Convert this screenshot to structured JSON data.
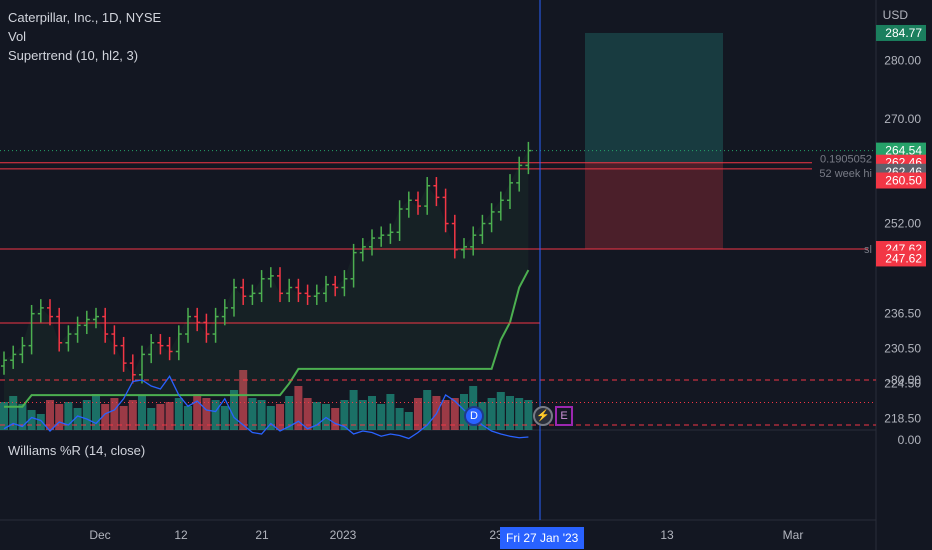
{
  "legend": {
    "title": "Caterpillar, Inc., 1D, NYSE",
    "vol": "Vol",
    "supertrend": "Supertrend (10, hl2, 3)",
    "williams": "Williams %R (14, close)"
  },
  "axis": {
    "currency": "USD",
    "price_ticks": [
      "280.00",
      "270.00",
      "252.00",
      "236.50",
      "230.50",
      "224.50",
      "218.50"
    ],
    "wr_ticks": [
      "0.00",
      "-80.00"
    ],
    "time_ticks": [
      "Dec",
      "12",
      "21",
      "2023",
      "23",
      "13",
      "Mar"
    ],
    "crosshair_date": "Fri 27 Jan '23"
  },
  "price_tags": [
    {
      "label": "284.77",
      "value": 284.77,
      "color": "#1b7f5e"
    },
    {
      "label": "264.54",
      "value": 264.54,
      "color": "#26a269"
    },
    {
      "label": "262.46",
      "value": 262.46,
      "color": "#f23645"
    },
    {
      "label": "262.46",
      "value": 260.9,
      "color": "#5d606b"
    },
    {
      "label": "260.50",
      "value": 259.4,
      "color": "#f23645"
    },
    {
      "label": "247.62",
      "value": 247.62,
      "color": "#f23645"
    },
    {
      "label": "247.62",
      "value": 246.0,
      "color": "#f23645"
    }
  ],
  "line_labels": {
    "fib": "0.1905052",
    "week_high": "52 week hi",
    "sl": "sl"
  },
  "badges": {
    "dividend": "D",
    "event": "E"
  },
  "colors": {
    "up": "#4caf50",
    "down": "#f23645",
    "supertrend": "#4caf50",
    "williams": "#2962ff",
    "vol_up": "#22ab94",
    "vol_down": "#f7525f"
  },
  "chart_data": {
    "type": "candlestick",
    "price_range": [
      216.5,
      287
    ],
    "hlines": [
      {
        "value": 262.46,
        "label": "0.1905052"
      },
      {
        "value": 261.4,
        "label": "52 week hi"
      },
      {
        "value": 247.62,
        "label": "sl"
      },
      {
        "value": 234.9,
        "label": ""
      }
    ],
    "position": {
      "entry": 262.46,
      "target": 284.77,
      "stop": 247.62
    },
    "close": [
      228.5,
      229.5,
      231.0,
      236.5,
      237.5,
      236.0,
      231.5,
      233.0,
      234.5,
      235.5,
      236.0,
      233.0,
      231.0,
      228.0,
      226.0,
      229.5,
      231.5,
      231.0,
      230.0,
      233.0,
      236.0,
      235.0,
      233.0,
      236.0,
      237.5,
      241.0,
      239.5,
      240.0,
      242.5,
      243.0,
      240.0,
      241.0,
      240.0,
      239.5,
      240.0,
      241.5,
      241.0,
      242.5,
      247.0,
      248.0,
      249.5,
      250.0,
      250.5,
      254.5,
      256.0,
      255.0,
      258.5,
      256.5,
      252.0,
      247.5,
      248.0,
      250.0,
      252.0,
      254.0,
      256.0,
      259.0,
      262.0,
      264.54
    ],
    "supertrend": [
      220.5,
      220.5,
      220.5,
      222.5,
      222.5,
      222.5,
      222.5,
      222.5,
      222.5,
      222.5,
      222.5,
      222.5,
      222.5,
      222.5,
      222.5,
      222.5,
      222.5,
      222.5,
      222.5,
      222.5,
      222.5,
      222.5,
      222.5,
      222.5,
      222.5,
      222.5,
      222.5,
      222.5,
      222.5,
      222.5,
      222.5,
      224.5,
      227.0,
      227.0,
      227.0,
      227.0,
      227.0,
      227.0,
      227.0,
      227.0,
      227.0,
      227.0,
      227.0,
      227.0,
      227.0,
      227.0,
      227.0,
      227.0,
      227.0,
      227.0,
      227.0,
      227.0,
      227.0,
      227.0,
      232.0,
      235.0,
      241.0,
      244.0
    ],
    "volume": [
      14,
      17,
      13,
      10,
      8,
      15,
      13,
      14,
      11,
      15,
      18,
      13,
      16,
      12,
      15,
      17,
      11,
      13,
      14,
      16,
      12,
      18,
      16,
      15,
      12,
      20,
      30,
      16,
      15,
      12,
      13,
      17,
      22,
      16,
      14,
      13,
      11,
      15,
      20,
      15,
      17,
      13,
      18,
      11,
      9,
      16,
      20,
      17,
      15,
      16,
      18,
      22,
      14,
      16,
      19,
      17,
      16,
      15
    ],
    "williams_r": [
      -15,
      -22,
      -18,
      -30,
      -26,
      -12,
      -24,
      -20,
      -32,
      -28,
      -22,
      -35,
      -40,
      -55,
      -78,
      -80,
      -72,
      -68,
      -85,
      -60,
      -45,
      -52,
      -40,
      -38,
      -55,
      -30,
      -20,
      -10,
      -8,
      -22,
      -12,
      -18,
      -25,
      -15,
      -20,
      -30,
      -22,
      -18,
      -8,
      -12,
      -10,
      -5,
      -8,
      -6,
      -2,
      -10,
      -20,
      -35,
      -60,
      -52,
      -40,
      -30,
      -20,
      -12,
      -8,
      -5,
      -3,
      -4
    ],
    "williams_levels": [
      -20,
      -50,
      -80
    ]
  }
}
